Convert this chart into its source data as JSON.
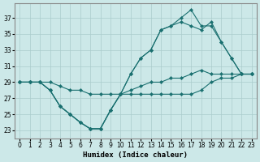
{
  "xlabel": "Humidex (Indice chaleur)",
  "bg_color": "#cce8e8",
  "grid_color": "#aacccc",
  "line_color": "#1a7070",
  "xlim": [
    -0.5,
    23.5
  ],
  "ylim": [
    22.0,
    38.8
  ],
  "yticks": [
    23,
    25,
    27,
    29,
    31,
    33,
    35,
    37
  ],
  "xticks": [
    0,
    1,
    2,
    3,
    4,
    5,
    6,
    7,
    8,
    9,
    10,
    11,
    12,
    13,
    14,
    15,
    16,
    17,
    18,
    19,
    20,
    21,
    22,
    23
  ],
  "series": [
    {
      "x": [
        0,
        1,
        2,
        3,
        4,
        5,
        6,
        7,
        8,
        9,
        10,
        11,
        12,
        13,
        14,
        15,
        16,
        17,
        18,
        19,
        20,
        21,
        22,
        23
      ],
      "y": [
        29,
        29,
        29,
        28,
        26,
        25,
        24,
        23.2,
        23.2,
        25.5,
        27.5,
        27.5,
        27.5,
        27.5,
        27.5,
        27.5,
        27.5,
        27.5,
        28,
        29,
        29.5,
        29.5,
        30,
        30
      ]
    },
    {
      "x": [
        0,
        1,
        2,
        3,
        4,
        5,
        6,
        7,
        8,
        9,
        10,
        11,
        12,
        13,
        14,
        15,
        16,
        17,
        18,
        19,
        20,
        21,
        22,
        23
      ],
      "y": [
        29,
        29,
        29,
        28,
        26,
        25,
        24,
        23.2,
        23.2,
        25.5,
        27.5,
        30,
        32,
        33,
        35.5,
        36,
        36.5,
        36,
        35.5,
        36.5,
        34,
        32,
        30,
        30
      ]
    },
    {
      "x": [
        0,
        1,
        2,
        3,
        4,
        5,
        6,
        7,
        8,
        9,
        10,
        11,
        12,
        13,
        14,
        15,
        16,
        17,
        18,
        19,
        20,
        21,
        22,
        23
      ],
      "y": [
        29,
        29,
        29,
        28,
        26,
        25,
        24,
        23.2,
        23.2,
        25.5,
        27.5,
        30,
        32,
        33,
        35.5,
        36,
        37,
        38,
        36,
        36,
        34,
        32,
        30,
        30
      ]
    },
    {
      "x": [
        0,
        1,
        2,
        3,
        4,
        5,
        6,
        7,
        8,
        9,
        10,
        11,
        12,
        13,
        14,
        15,
        16,
        17,
        18,
        19,
        20,
        21,
        22,
        23
      ],
      "y": [
        29,
        29,
        29,
        29,
        28.5,
        28,
        28,
        27.5,
        27.5,
        27.5,
        27.5,
        28,
        28.5,
        29,
        29,
        29.5,
        29.5,
        30,
        30.5,
        30,
        30,
        30,
        30,
        30
      ]
    }
  ]
}
